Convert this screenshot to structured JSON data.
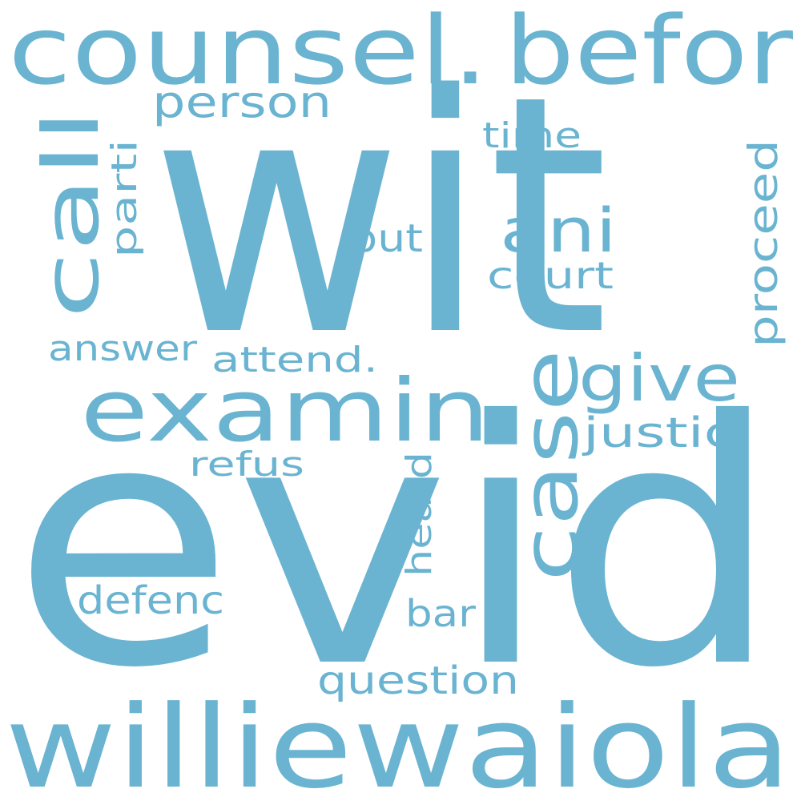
{
  "wordcloud": {
    "color": "#6ab4d1",
    "background": "#ffffff",
    "words": {
      "wit": "wit",
      "evid": "evid",
      "williewaiola": "williewaiola",
      "counsel": "counsel.",
      "befor": "befor",
      "examin": "examin.",
      "case": "case",
      "call": "call",
      "give": "give",
      "person": "person",
      "time": "time",
      "parti": "parti",
      "ani": "ani",
      "put": "put",
      "court": "court",
      "proceed": "proceed",
      "answer": "answer",
      "attend": "attend.",
      "justic": "justic",
      "refus": "refus",
      "heard": "heard",
      "defenc": "defenc",
      "bar": "bar",
      "question": "question"
    }
  }
}
